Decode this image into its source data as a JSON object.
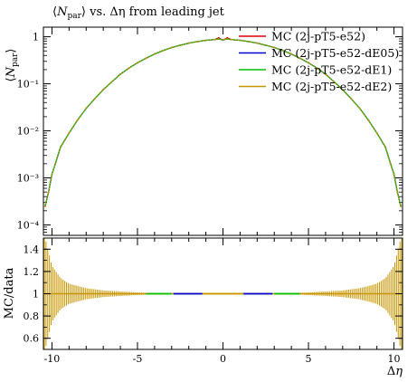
{
  "chart_data": [
    {
      "type": "line",
      "title": "⟨N_par⟩ vs. Δη from leading jet",
      "ylabel": "⟨N_par⟩",
      "xlabel": "",
      "xlim": [
        -10.5,
        10.5
      ],
      "ylim": [
        6e-05,
        1.6
      ],
      "yscale": "log",
      "grid": false,
      "legend_position": "top-right",
      "x_ticks": [
        -10,
        -5,
        0,
        5,
        10
      ],
      "y_ticks": [
        {
          "value": 1,
          "label": "1"
        },
        {
          "value": 0.1,
          "label": "10⁻¹"
        },
        {
          "value": 0.01,
          "label": "10⁻²"
        },
        {
          "value": 0.001,
          "label": "10⁻³"
        },
        {
          "value": 0.0001,
          "label": "10⁻⁴"
        }
      ],
      "x": [
        -10.4,
        -10.2,
        -10.0,
        -9.8,
        -9.5,
        -9.0,
        -8.5,
        -8.0,
        -7.5,
        -7.0,
        -6.5,
        -6.0,
        -5.5,
        -5.0,
        -4.5,
        -4.0,
        -3.5,
        -3.0,
        -2.5,
        -2.0,
        -1.5,
        -1.0,
        -0.5,
        -0.25,
        0.0,
        0.25,
        0.5,
        1.0,
        1.5,
        2.0,
        2.5,
        3.0,
        3.5,
        4.0,
        4.5,
        5.0,
        5.5,
        6.0,
        6.5,
        7.0,
        7.5,
        8.0,
        8.5,
        9.0,
        9.5,
        9.8,
        10.0,
        10.2,
        10.4
      ],
      "series": [
        {
          "name": "MC (2j-pT5-e52)",
          "color": "#e00000",
          "values": [
            0.00025,
            0.0005,
            0.0012,
            0.002,
            0.0045,
            0.009,
            0.017,
            0.03,
            0.048,
            0.075,
            0.11,
            0.16,
            0.215,
            0.28,
            0.35,
            0.43,
            0.51,
            0.59,
            0.66,
            0.73,
            0.79,
            0.84,
            0.87,
            0.95,
            0.85,
            0.95,
            0.87,
            0.84,
            0.79,
            0.73,
            0.66,
            0.59,
            0.51,
            0.43,
            0.35,
            0.28,
            0.215,
            0.16,
            0.11,
            0.075,
            0.048,
            0.03,
            0.017,
            0.009,
            0.0045,
            0.002,
            0.0012,
            0.0005,
            0.00025
          ]
        },
        {
          "name": "MC (2j-pT5-e52-dE05)",
          "color": "#0000d0",
          "values": [
            0.00025,
            0.0005,
            0.0012,
            0.002,
            0.0045,
            0.009,
            0.017,
            0.03,
            0.048,
            0.075,
            0.11,
            0.16,
            0.215,
            0.28,
            0.35,
            0.43,
            0.51,
            0.59,
            0.66,
            0.73,
            0.79,
            0.84,
            0.87,
            0.9,
            0.86,
            0.9,
            0.87,
            0.84,
            0.79,
            0.73,
            0.66,
            0.59,
            0.51,
            0.43,
            0.35,
            0.28,
            0.215,
            0.16,
            0.11,
            0.075,
            0.048,
            0.03,
            0.017,
            0.009,
            0.0045,
            0.002,
            0.0012,
            0.0005,
            0.00025
          ]
        },
        {
          "name": "MC (2j-pT5-e52-dE1)",
          "color": "#00c000",
          "values": [
            0.00025,
            0.0005,
            0.0012,
            0.002,
            0.0045,
            0.009,
            0.017,
            0.03,
            0.048,
            0.075,
            0.11,
            0.16,
            0.215,
            0.28,
            0.35,
            0.43,
            0.51,
            0.59,
            0.66,
            0.73,
            0.79,
            0.84,
            0.87,
            0.9,
            0.86,
            0.9,
            0.87,
            0.84,
            0.79,
            0.73,
            0.66,
            0.59,
            0.51,
            0.43,
            0.35,
            0.28,
            0.215,
            0.16,
            0.11,
            0.075,
            0.048,
            0.03,
            0.017,
            0.009,
            0.0045,
            0.002,
            0.0012,
            0.0005,
            0.00025
          ]
        },
        {
          "name": "MC (2j-pT5-e52-dE2)",
          "color": "#c89600",
          "values": [
            0.00025,
            0.0005,
            0.0012,
            0.002,
            0.0045,
            0.009,
            0.017,
            0.03,
            0.048,
            0.075,
            0.11,
            0.16,
            0.215,
            0.28,
            0.35,
            0.43,
            0.51,
            0.59,
            0.66,
            0.73,
            0.79,
            0.84,
            0.87,
            0.9,
            0.86,
            0.9,
            0.87,
            0.84,
            0.79,
            0.73,
            0.66,
            0.59,
            0.51,
            0.43,
            0.35,
            0.28,
            0.215,
            0.16,
            0.11,
            0.075,
            0.048,
            0.03,
            0.017,
            0.009,
            0.0045,
            0.002,
            0.0012,
            0.0005,
            0.00025
          ]
        }
      ]
    },
    {
      "type": "line",
      "title": "",
      "ylabel": "MC/data",
      "xlabel": "Δη",
      "xlim": [
        -10.5,
        10.5
      ],
      "ylim": [
        0.5,
        1.5
      ],
      "grid": false,
      "x_ticks": [
        -10,
        -5,
        0,
        5,
        10
      ],
      "y_ticks": [
        1.4,
        1.2,
        1,
        0.8,
        0.6
      ],
      "reference_line": 1.0,
      "color_bands": [
        {
          "color": "#00c000",
          "from": -4.5,
          "to": -3.0
        },
        {
          "color": "#0000d0",
          "from": -2.9,
          "to": -1.2
        },
        {
          "color": "#c89600",
          "from": -1.2,
          "to": 1.2
        },
        {
          "color": "#0000d0",
          "from": 1.2,
          "to": 2.9
        },
        {
          "color": "#00c000",
          "from": 3.0,
          "to": 4.5
        }
      ],
      "error_band_color": "#c89600",
      "error_envelope": {
        "x": [
          -10.4,
          -10.0,
          -9.5,
          -9.0,
          -8.0,
          -7.0,
          -6.0,
          -5.0,
          -4.0,
          4.0,
          5.0,
          6.0,
          7.0,
          8.0,
          9.0,
          9.5,
          10.0,
          10.4
        ],
        "half_width": [
          0.5,
          0.25,
          0.14,
          0.09,
          0.05,
          0.03,
          0.02,
          0.012,
          0.005,
          0.005,
          0.012,
          0.02,
          0.03,
          0.05,
          0.09,
          0.14,
          0.25,
          0.5
        ]
      }
    }
  ]
}
